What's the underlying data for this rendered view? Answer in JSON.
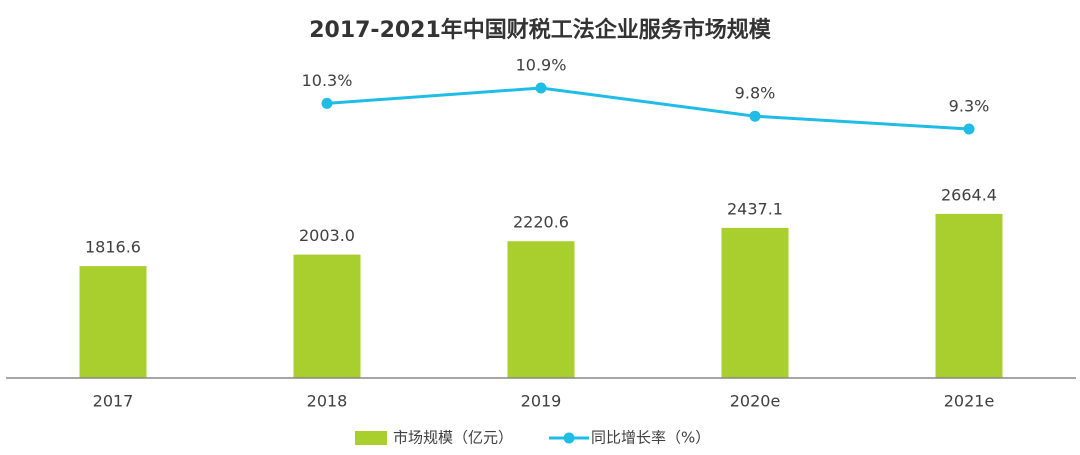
{
  "chart_data": {
    "type": "bar-line",
    "title": "2017-2021年中国财税工法企业服务市场规模",
    "categories": [
      "2017",
      "2018",
      "2019",
      "2020e",
      "2021e"
    ],
    "ylim": [
      0,
      5000
    ],
    "y2lim": [
      -0.4,
      11.6
    ],
    "series": [
      {
        "name": "市场规模（亿元）",
        "type": "bar",
        "color": "#a9cf2f",
        "values": [
          1816.6,
          2003.0,
          2220.6,
          2437.1,
          2664.4
        ],
        "value_labels": [
          "1816.6",
          "2003.0",
          "2220.6",
          "2437.1",
          "2664.4"
        ]
      },
      {
        "name": "同比增长率（%）",
        "type": "line",
        "axis": "y2",
        "color": "#1fbde6",
        "values": [
          null,
          10.3,
          10.9,
          9.8,
          9.3
        ],
        "value_labels": [
          null,
          "10.3%",
          "10.9%",
          "9.8%",
          "9.3%"
        ]
      }
    ]
  }
}
